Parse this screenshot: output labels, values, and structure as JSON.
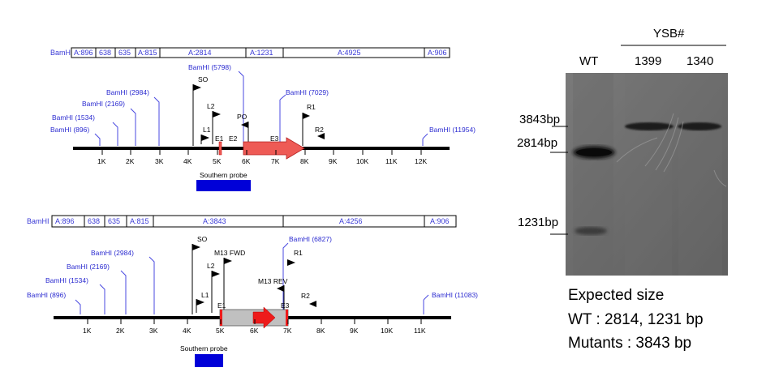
{
  "map1": {
    "bamhi_label": "BamHI",
    "fragments": [
      "A:896",
      "638",
      "635",
      "A:815",
      "A:2814",
      "A:1231",
      "A:4925",
      "A:906"
    ],
    "sites": [
      "BamHI (896)",
      "BamHI (1534)",
      "BamHI (2169)",
      "BamHI (2984)",
      "BamHI (5798)",
      "BamHI (7029)",
      "BamHI (11954)"
    ],
    "ticks": [
      "1K",
      "2K",
      "3K",
      "4K",
      "5K",
      "6K",
      "7K",
      "8K",
      "9K",
      "10K",
      "11K",
      "12K"
    ],
    "primers": [
      "SO",
      "L2",
      "L1",
      "PO",
      "R1",
      "R2"
    ],
    "features": [
      "E1",
      "E2",
      "E3"
    ],
    "probe_label": "Southern probe"
  },
  "map2": {
    "bamhi_label": "BamHI",
    "fragments": [
      "A:896",
      "638",
      "635",
      "A:815",
      "A:3843",
      "A:4256",
      "A:906"
    ],
    "sites": [
      "BamHI (896)",
      "BamHI (1534)",
      "BamHI (2169)",
      "BamHI (2984)",
      "BamHI (6827)",
      "BamHI (11083)"
    ],
    "ticks": [
      "1K",
      "2K",
      "3K",
      "4K",
      "5K",
      "6K",
      "7K",
      "8K",
      "9K",
      "10K",
      "11K"
    ],
    "primers": [
      "SO",
      "M13 FWD",
      "L2",
      "L1",
      "R1",
      "M13 REV",
      "R2"
    ],
    "features": [
      "E1",
      "E3"
    ],
    "probe_label": "Southern probe"
  },
  "gel": {
    "group_label": "YSB#",
    "lanes": [
      "WT",
      "1399",
      "1340"
    ],
    "markers": [
      "3843bp",
      "2814bp",
      "1231bp"
    ]
  },
  "expected": {
    "title": "Expected size",
    "wt": "WT : 2814, 1231 bp",
    "mutants": "Mutants : 3843 bp"
  },
  "colors": {
    "site_blue": "#3a3ad6",
    "probe_blue": "#0000d8",
    "gene_red": "#ee5a55",
    "marker_gray": "#c0c0c0",
    "marker_red": "#ee1b1b"
  }
}
